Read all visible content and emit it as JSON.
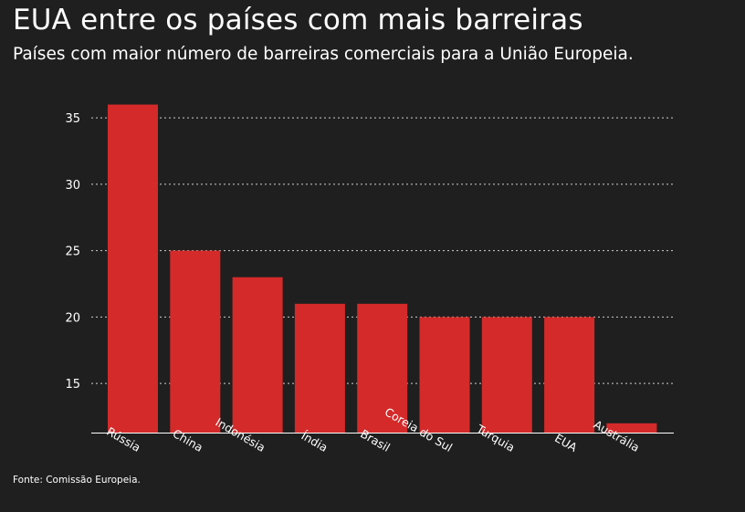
{
  "chart_data": {
    "type": "bar",
    "title": "EUA entre os países com mais barreiras",
    "subtitle": "Países com maior número de barreiras comerciais para a União Europeia.",
    "source": "Fonte: Comissão Europeia.",
    "categories": [
      "Rússia",
      "China",
      "Indonésia",
      "Índia",
      "Brasil",
      "Coreia do Sul",
      "Turquia",
      "EUA",
      "Austrália"
    ],
    "values": [
      36,
      25,
      23,
      21,
      21,
      20,
      20,
      20,
      12
    ],
    "yticks": [
      15,
      20,
      25,
      30,
      35
    ],
    "ylim": [
      11.3,
      37
    ],
    "xlabel": "",
    "ylabel": "",
    "grid": true,
    "bar_color": "#d42a2a",
    "grid_color": "#cfcfcf"
  }
}
